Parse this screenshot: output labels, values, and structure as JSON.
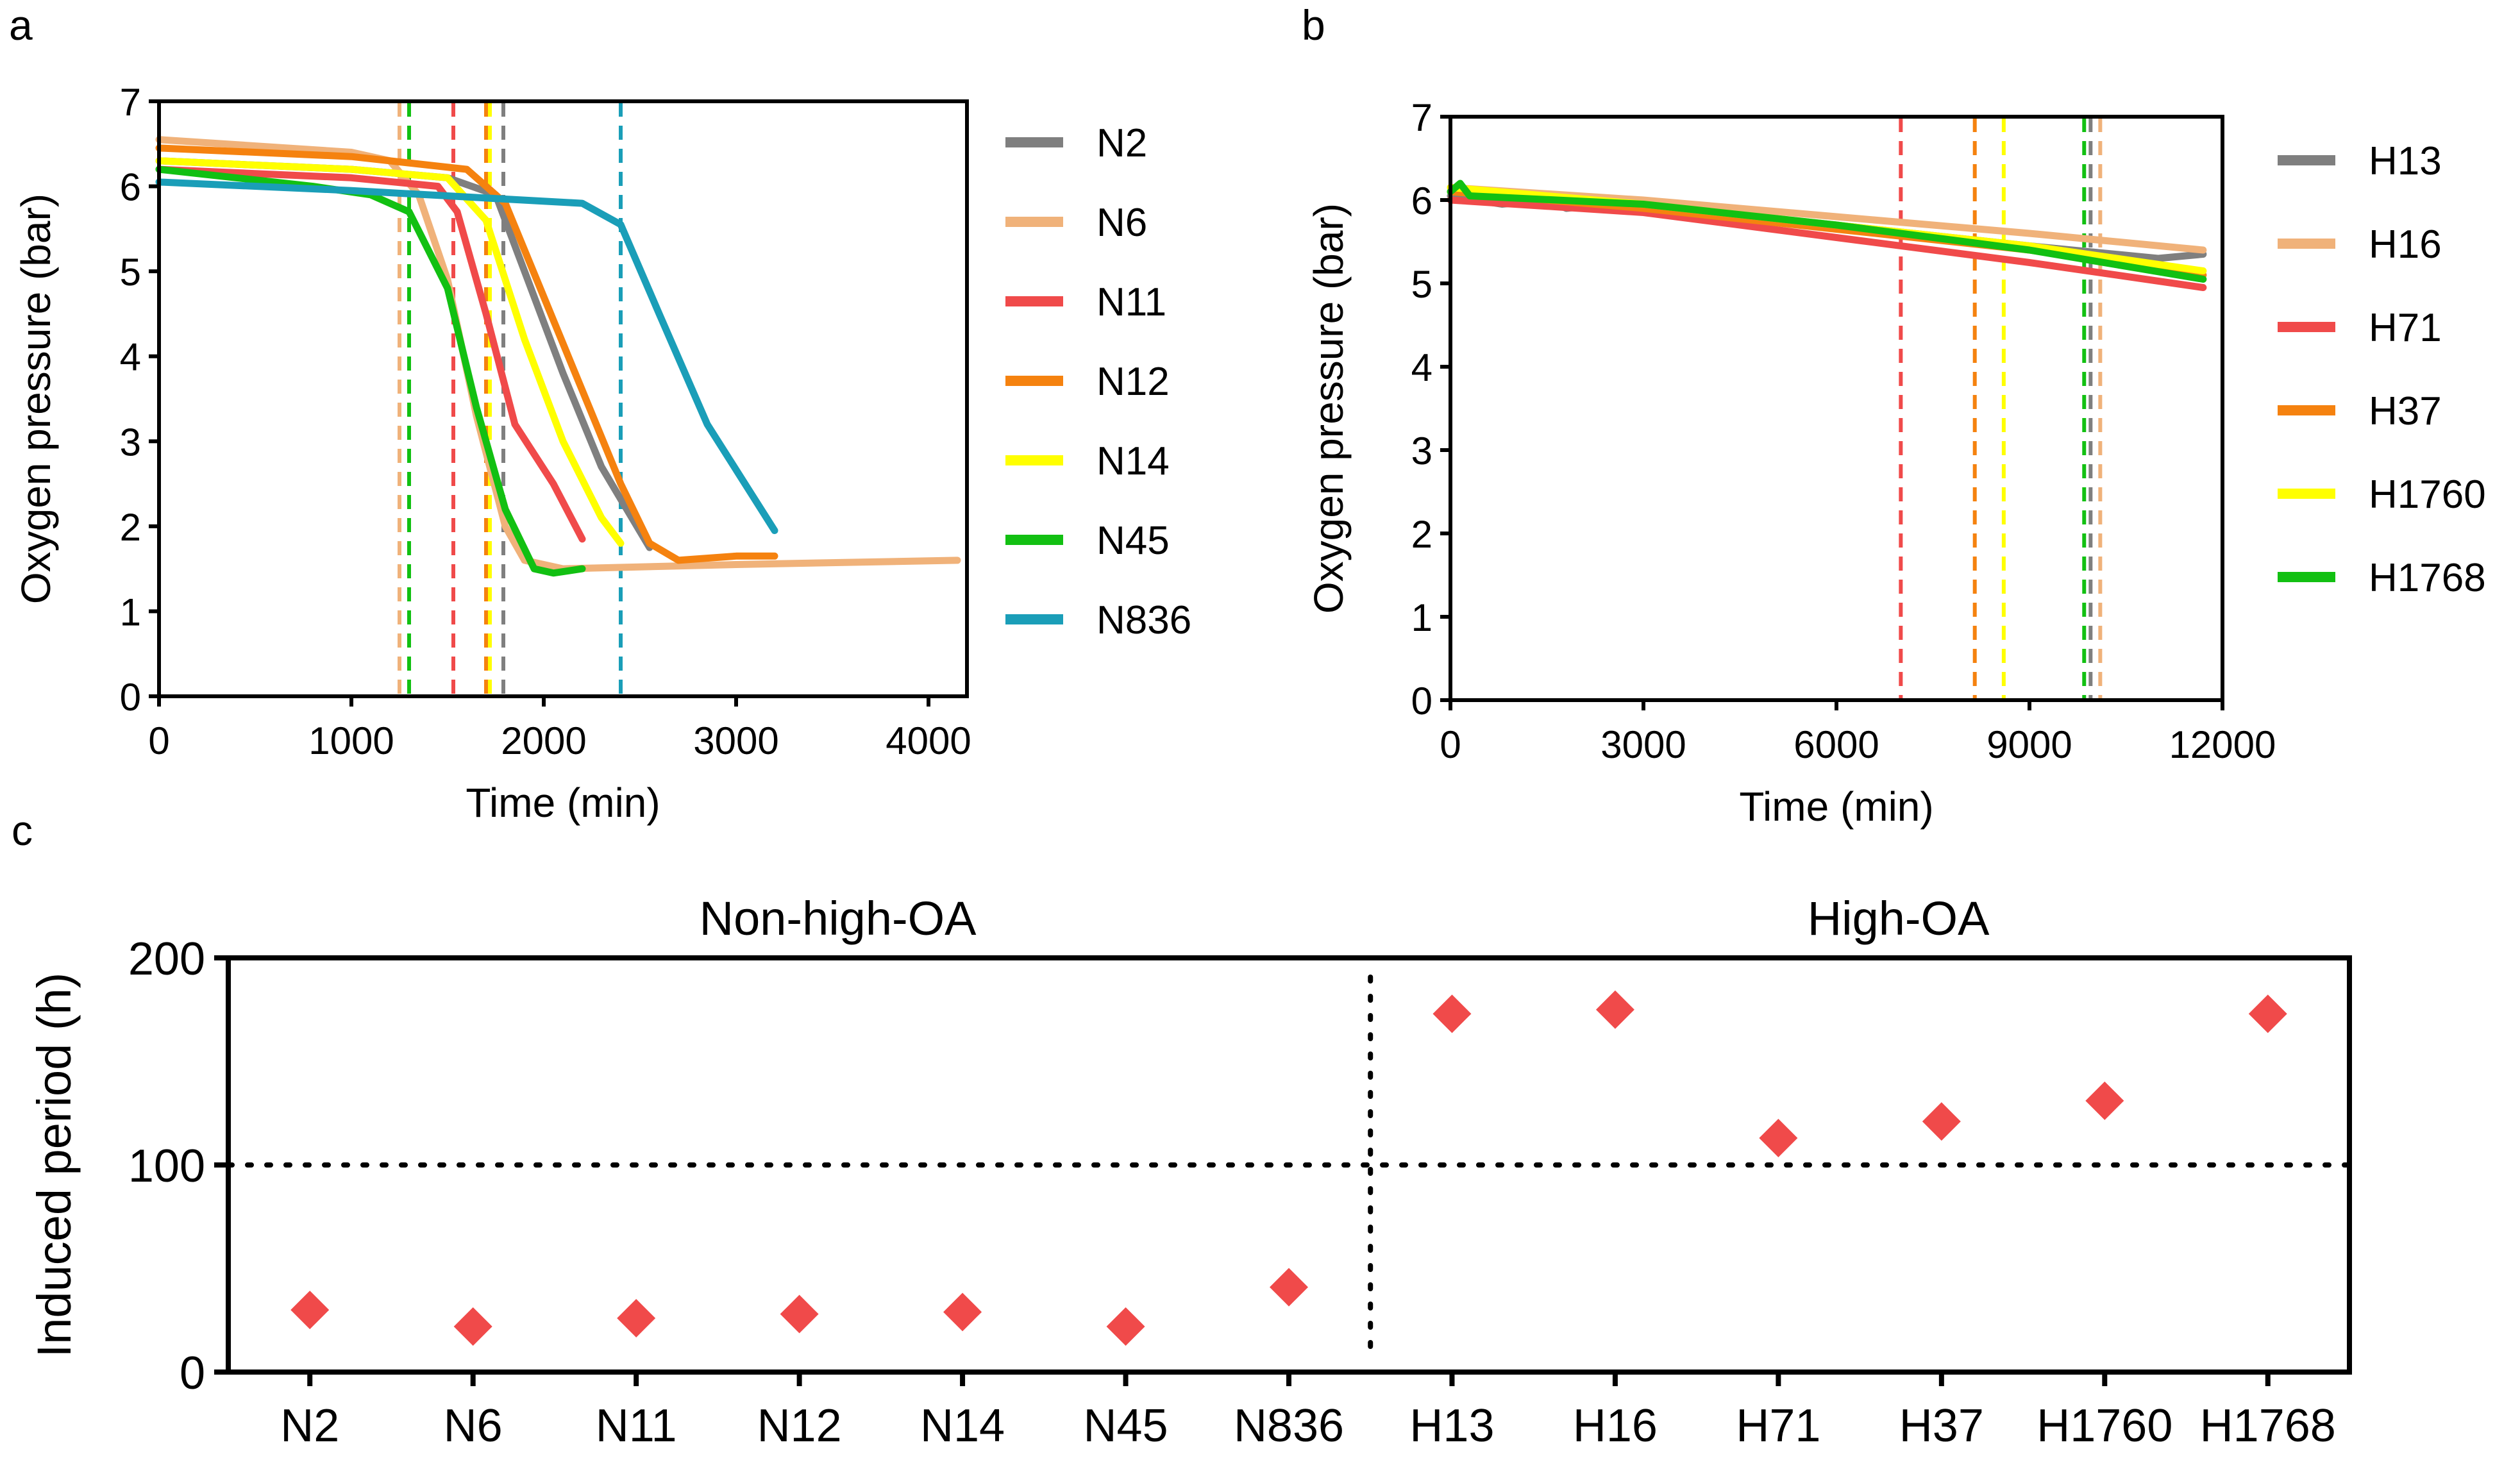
{
  "colors": {
    "N2": "#7f7f7f",
    "N6": "#f0b27a",
    "N11": "#f04a4a",
    "N12": "#f5820f",
    "N14": "#ffff00",
    "N45": "#12c012",
    "N836": "#1a9eb8",
    "H13": "#7f7f7f",
    "H16": "#f0b27a",
    "H71": "#f04a4a",
    "H37": "#f5820f",
    "H1760": "#ffff00",
    "H1768": "#12c012",
    "marker": "#f04a4a"
  },
  "chart_data": [
    {
      "panel_label": "a",
      "type": "line",
      "xlabel": "Time (min)",
      "ylabel": "Oxygen pressure (bar)",
      "xlim": [
        0,
        4200
      ],
      "ylim": [
        0,
        7
      ],
      "xticks": [
        0,
        1000,
        2000,
        3000,
        4000
      ],
      "yticks": [
        0,
        1,
        2,
        3,
        4,
        5,
        6,
        7
      ],
      "legend_position": "right",
      "series": [
        {
          "name": "N2",
          "x": [
            0,
            1000,
            1500,
            1750,
            1900,
            2100,
            2300,
            2550
          ],
          "y": [
            6.3,
            6.2,
            6.1,
            5.9,
            5.0,
            3.8,
            2.7,
            1.75
          ]
        },
        {
          "name": "N6",
          "x": [
            0,
            1000,
            1200,
            1350,
            1500,
            1650,
            1800,
            1900,
            2100,
            3000,
            4150
          ],
          "y": [
            6.55,
            6.4,
            6.3,
            5.9,
            4.9,
            3.3,
            2.0,
            1.6,
            1.5,
            1.55,
            1.6
          ]
        },
        {
          "name": "N11",
          "x": [
            0,
            1000,
            1450,
            1550,
            1700,
            1850,
            2050,
            2200
          ],
          "y": [
            6.2,
            6.1,
            6.0,
            5.7,
            4.5,
            3.2,
            2.5,
            1.85
          ]
        },
        {
          "name": "N12",
          "x": [
            0,
            1000,
            1600,
            1800,
            2000,
            2200,
            2400,
            2550,
            2700,
            3000,
            3200
          ],
          "y": [
            6.45,
            6.35,
            6.2,
            5.8,
            4.7,
            3.6,
            2.5,
            1.8,
            1.6,
            1.65,
            1.65
          ]
        },
        {
          "name": "N14",
          "x": [
            0,
            1000,
            1500,
            1700,
            1900,
            2100,
            2300,
            2400
          ],
          "y": [
            6.3,
            6.2,
            6.1,
            5.6,
            4.2,
            3.0,
            2.1,
            1.8
          ]
        },
        {
          "name": "N45",
          "x": [
            0,
            800,
            1100,
            1300,
            1500,
            1650,
            1800,
            1950,
            2050,
            2200
          ],
          "y": [
            6.2,
            6.0,
            5.9,
            5.7,
            4.8,
            3.4,
            2.2,
            1.5,
            1.45,
            1.5
          ]
        },
        {
          "name": "N836",
          "x": [
            0,
            1000,
            1800,
            2200,
            2400,
            2600,
            2850,
            3200
          ],
          "y": [
            6.05,
            5.95,
            5.85,
            5.8,
            5.55,
            4.5,
            3.2,
            1.95
          ]
        }
      ],
      "vlines": [
        {
          "series": "N6",
          "x": 1250
        },
        {
          "series": "N45",
          "x": 1300
        },
        {
          "series": "N11",
          "x": 1530
        },
        {
          "series": "N12",
          "x": 1700
        },
        {
          "series": "N14",
          "x": 1720
        },
        {
          "series": "N2",
          "x": 1790
        },
        {
          "series": "N836",
          "x": 2400
        }
      ]
    },
    {
      "panel_label": "b",
      "type": "line",
      "xlabel": "Time (min)",
      "ylabel": "Oxygen pressure (bar)",
      "xlim": [
        0,
        12000
      ],
      "ylim": [
        0,
        7
      ],
      "xticks": [
        0,
        3000,
        6000,
        9000,
        12000
      ],
      "yticks": [
        0,
        1,
        2,
        3,
        4,
        5,
        6,
        7
      ],
      "legend_position": "right",
      "series": [
        {
          "name": "H13",
          "x": [
            0,
            800,
            1500,
            1800,
            2400,
            2700,
            3500,
            6000,
            9000,
            11000,
            11700
          ],
          "y": [
            6.05,
            5.95,
            6.0,
            5.9,
            5.95,
            5.9,
            5.9,
            5.7,
            5.45,
            5.3,
            5.35
          ]
        },
        {
          "name": "H16",
          "x": [
            0,
            3000,
            6000,
            9000,
            11700
          ],
          "y": [
            6.15,
            6.0,
            5.8,
            5.6,
            5.4
          ]
        },
        {
          "name": "H71",
          "x": [
            0,
            3000,
            6000,
            9000,
            11700
          ],
          "y": [
            6.0,
            5.85,
            5.55,
            5.25,
            4.95
          ]
        },
        {
          "name": "H37",
          "x": [
            0,
            3000,
            6000,
            9000,
            11700
          ],
          "y": [
            6.1,
            5.9,
            5.65,
            5.4,
            5.1
          ]
        },
        {
          "name": "H1760",
          "x": [
            0,
            3000,
            6000,
            9000,
            11700
          ],
          "y": [
            6.15,
            5.95,
            5.7,
            5.45,
            5.15
          ]
        },
        {
          "name": "H1768",
          "x": [
            0,
            150,
            300,
            3000,
            6000,
            9000,
            11700
          ],
          "y": [
            6.1,
            6.2,
            6.05,
            5.95,
            5.7,
            5.4,
            5.05
          ]
        }
      ],
      "vlines": [
        {
          "series": "H71",
          "x": 7000
        },
        {
          "series": "H37",
          "x": 8150
        },
        {
          "series": "H1760",
          "x": 8600
        },
        {
          "series": "H1768",
          "x": 9850
        },
        {
          "series": "H13",
          "x": 9950
        },
        {
          "series": "H16",
          "x": 10100
        }
      ]
    },
    {
      "panel_label": "c",
      "type": "scatter",
      "ylabel": "Induced period (h)",
      "ylim": [
        0,
        200
      ],
      "yticks": [
        0,
        100,
        200
      ],
      "reference_line_y": 100,
      "group_labels": [
        "Non-high-OA",
        "High-OA"
      ],
      "categories": [
        "N2",
        "N6",
        "N11",
        "N12",
        "N14",
        "N45",
        "N836",
        "H13",
        "H16",
        "H71",
        "H37",
        "H1760",
        "H1768"
      ],
      "values": [
        30,
        22,
        26,
        28,
        29,
        22,
        41,
        173,
        175,
        113,
        121,
        131,
        173
      ]
    }
  ]
}
